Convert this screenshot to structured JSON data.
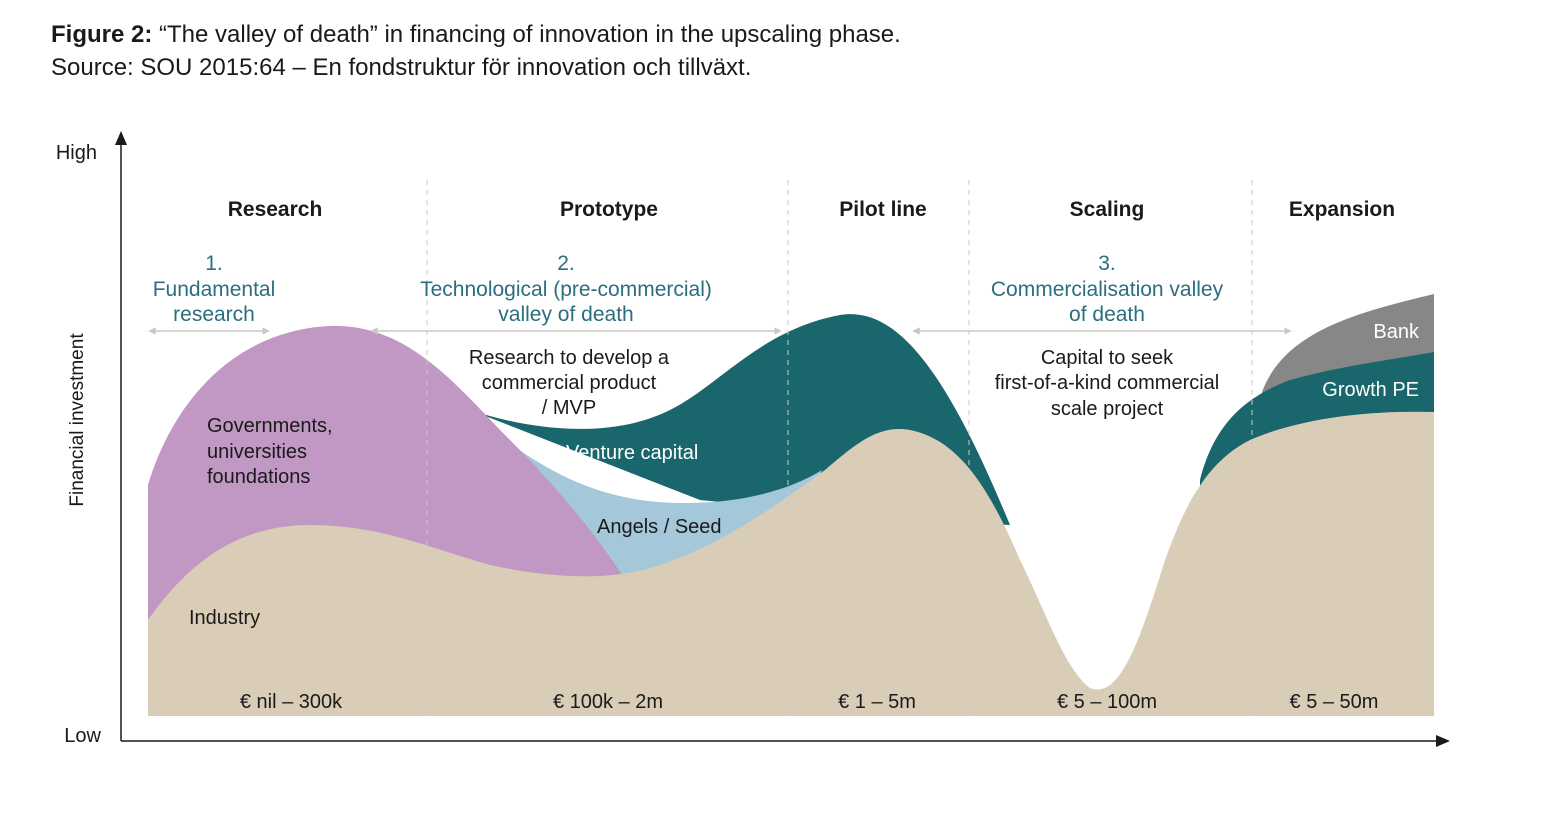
{
  "caption": {
    "label": "Figure 2:",
    "title": "“The valley of death” in financing of innovation in the upscaling phase.",
    "source": "Source: SOU 2015:64 – En fondstruktur för innovation och tillväxt."
  },
  "axes": {
    "y_label": "Financial investment",
    "y_high": "High",
    "y_low": "Low"
  },
  "stages": [
    "Research",
    "Prototype",
    "Pilot line",
    "Scaling",
    "Expansion"
  ],
  "valleys": [
    {
      "number": "1.",
      "line1": "Fundamental",
      "line2": "research"
    },
    {
      "number": "2.",
      "line1": "Technological (pre-commercial)",
      "line2": "valley of death"
    },
    {
      "number": "3.",
      "line1": "Commercialisation valley",
      "line2": "of death"
    }
  ],
  "descriptions": {
    "prototype": [
      "Research to develop a",
      "commercial product",
      "/ MVP"
    ],
    "scaling": [
      "Capital to seek",
      "first-of-a-kind commercial",
      "scale project"
    ]
  },
  "areas": {
    "governments": [
      "Governments,",
      "universities",
      "foundations"
    ],
    "industry": "Industry",
    "venture_capital": "Venture capital",
    "angels_seed": "Angels / Seed",
    "bank": "Bank",
    "growth_pe": "Growth PE"
  },
  "ranges": [
    "€ nil – 300k",
    "€ 100k – 2m",
    "€ 1 – 5m",
    "€ 5 – 100m",
    "€ 5 – 50m"
  ],
  "colors": {
    "industry": "#dacdb8",
    "governments": "#c198c4",
    "venture_capital": "#1a666d",
    "angels_seed": "#a5c7da",
    "bank": "#878787",
    "valley_text": "#2b6e80",
    "arrow": "#c8c8c8"
  }
}
